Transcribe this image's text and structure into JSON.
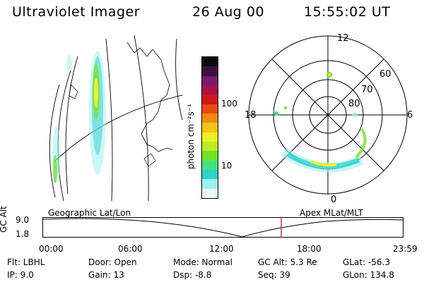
{
  "header": {
    "instrument": "Ultraviolet Imager",
    "date": "26 Aug 00",
    "time": "15:55:02 UT"
  },
  "colorbar": {
    "unit_label": "photon cm⁻²s⁻¹",
    "ticks": [
      "100",
      "10"
    ],
    "colors": [
      "#e9f7f7",
      "#9ef0ec",
      "#2fd2cf",
      "#43e080",
      "#6ee32a",
      "#b8ee22",
      "#eef022",
      "#f6c218",
      "#f08a12",
      "#e84810",
      "#d01818",
      "#a8104c",
      "#7a1a6a",
      "#3a1040",
      "#0a0a12"
    ]
  },
  "maps": {
    "left_caption": "Geographic Lat/Lon",
    "right_caption": "Apex MLat/MLT",
    "polar_labels": {
      "top": "12",
      "bottom": "0",
      "left": "18",
      "right": "6"
    },
    "lat_labels": [
      "60",
      "70",
      "80"
    ]
  },
  "timeline": {
    "ylabel": "GC Alt",
    "yticks": [
      "9.0",
      "1.8"
    ],
    "xticks": [
      "00:00",
      "06:00",
      "12:00",
      "18:00",
      "23:59"
    ],
    "cursor_color": "#d01010"
  },
  "info": {
    "flt": "Flt: LBHL",
    "ip": "IP:  9.0",
    "door": "Door: Open",
    "gain": "Gain: 13",
    "mode": "Mode: Normal",
    "dsp": "Dsp:   -8.8",
    "gc_alt": "GC Alt: 5.3 Re",
    "seq": "Seq: 39",
    "glat": "GLat: -56.3",
    "glon": "GLon: 134.8"
  }
}
